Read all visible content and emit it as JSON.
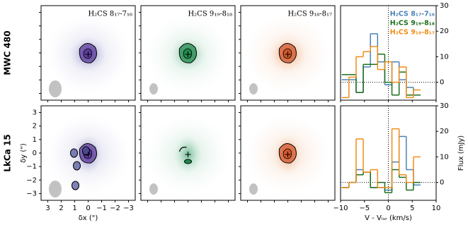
{
  "row_labels": [
    "MWC 480",
    "LkCa 15"
  ],
  "image_panels": {
    "titles": [
      "H₂CS 8₁₇-7₁₆",
      "H₂CS 9₁₉-8₁₈",
      "H₂CS 9₁₈-8₁₇"
    ],
    "colors": [
      "#5b3b9c",
      "#1f8a4c",
      "#d2552b"
    ],
    "xlabel": "δx (\")",
    "ylabel": "δy (\")",
    "xlim": [
      3.5,
      -3.5
    ],
    "ylim": [
      -3.5,
      3.5
    ],
    "xticks": [
      3,
      2,
      1,
      0,
      {
        "value": -1,
        "label": "−1"
      },
      {
        "value": -2,
        "label": "−2"
      },
      {
        "value": -3,
        "label": "−3"
      }
    ],
    "yticks": [
      {
        "value": -3,
        "label": "−3"
      },
      {
        "value": -2,
        "label": "−2"
      },
      {
        "value": -1,
        "label": "−1"
      },
      0,
      1,
      2,
      3
    ]
  },
  "chart_data": [
    {
      "type": "step",
      "xlabel": "V - Vₗₛᵣ (km/s)",
      "ylabel": "Flux (mJy)",
      "x": [
        -9,
        -7.5,
        -6,
        -4.5,
        -3,
        -1.5,
        0,
        1.5,
        3,
        4.5,
        6
      ],
      "xlim": [
        -10,
        10
      ],
      "ylim": [
        -7,
        30
      ],
      "xticks": [
        {
          "value": -10,
          "label": "−10"
        },
        {
          "value": -5,
          "label": "−5"
        },
        0,
        5,
        10
      ],
      "yticks": [
        0,
        10,
        20,
        30
      ],
      "legend": "upper right",
      "series": [
        {
          "name": "H₂CS 8₁₇-7₁₆",
          "color": "#4a82b8",
          "values": [
            1,
            1,
            -4,
            6,
            19,
            8,
            -1,
            8,
            1,
            -2,
            -5
          ]
        },
        {
          "name": "H₂CS 9₁₉-8₁₈",
          "color": "#1c6e1c",
          "values": [
            3,
            3,
            -4,
            7,
            7,
            11,
            0,
            -5,
            4,
            -5,
            -5
          ]
        },
        {
          "name": "H₂CS 9₁₈-8₁₇",
          "color": "#f28c18",
          "values": [
            -6,
            2,
            10,
            12,
            14,
            5,
            8,
            0,
            6,
            -6,
            -3
          ]
        }
      ]
    },
    {
      "type": "step",
      "xlabel": "V - Vₗₛᵣ (km/s)",
      "ylabel": "Flux (mJy)",
      "x": [
        -9,
        -7.5,
        -6,
        -4.5,
        -3,
        -1.5,
        0,
        1.5,
        3,
        4.5,
        6
      ],
      "xlim": [
        -10,
        10
      ],
      "ylim": [
        -7,
        30
      ],
      "xticks": [
        {
          "value": -10,
          "label": "−10"
        },
        {
          "value": -5,
          "label": "−5"
        },
        0,
        5,
        10
      ],
      "yticks": [
        0,
        10,
        20,
        30
      ],
      "series": [
        {
          "name": "H₂CS 8₁₇-7₁₆",
          "color": "#4a82b8",
          "values": [
            -2,
            0,
            5,
            4,
            -2,
            -2,
            -3,
            8,
            18,
            5,
            -1
          ]
        },
        {
          "name": "H₂CS 9₁₉-8₁₈",
          "color": "#1c6e1c",
          "values": [
            -2,
            0,
            3,
            4,
            -2,
            0,
            -4,
            5,
            2,
            -3,
            0
          ]
        },
        {
          "name": "H₂CS 9₁₈-8₁₇",
          "color": "#f28c18",
          "values": [
            -2,
            0,
            17,
            4,
            5,
            -2,
            -2,
            21,
            3,
            0,
            10
          ]
        }
      ]
    }
  ]
}
